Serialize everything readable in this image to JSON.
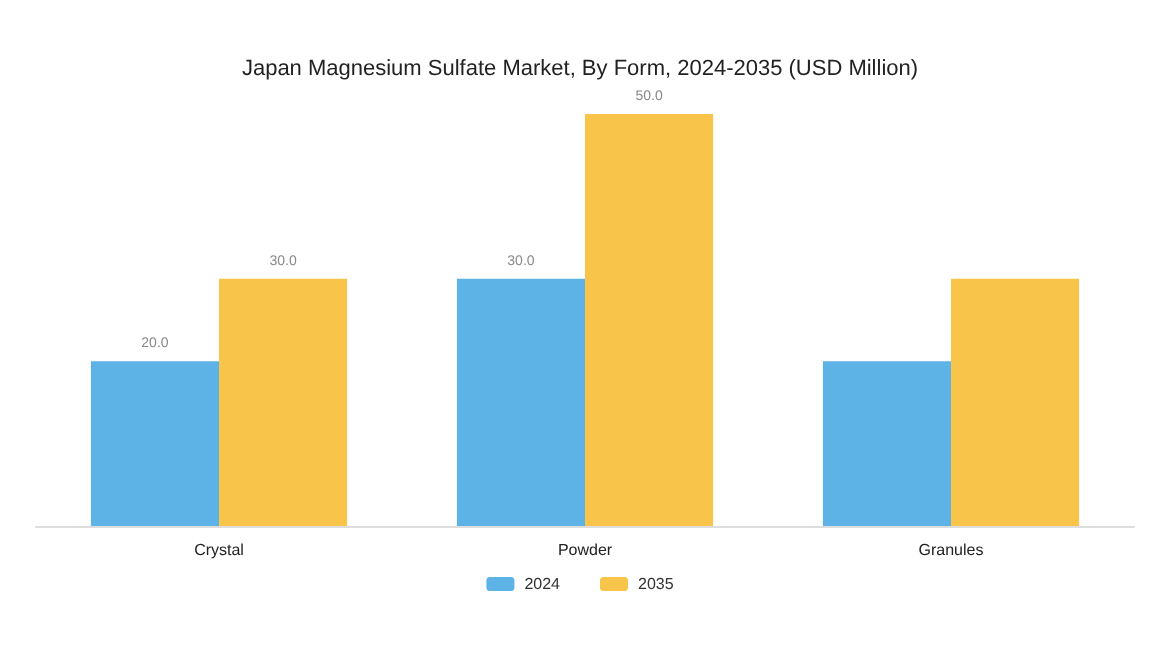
{
  "chart_data": {
    "type": "bar",
    "title": "Japan Magnesium Sulfate Market, By Form, 2024-2035 (USD Million)",
    "categories": [
      "Crystal",
      "Powder",
      "Granules"
    ],
    "series": [
      {
        "name": "2024",
        "color": "#5db3e6",
        "values": [
          20,
          30,
          20
        ],
        "value_labels": [
          "20.0",
          "30.0",
          null
        ]
      },
      {
        "name": "2035",
        "color": "#f8c44a",
        "values": [
          30,
          50,
          30
        ],
        "value_labels": [
          "30.0",
          "50.0",
          null
        ]
      }
    ],
    "legend": "bottom",
    "grid": false
  }
}
